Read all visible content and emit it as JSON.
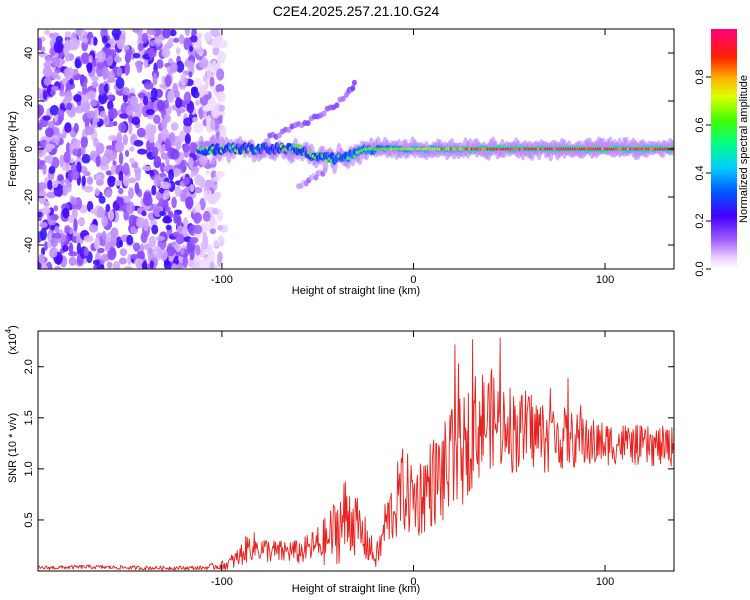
{
  "title": "C2E4.2025.257.21.10.G24",
  "chart_data": [
    {
      "type": "heatmap",
      "title": "C2E4.2025.257.21.10.G24",
      "xlabel": "Height of straight line (km)",
      "ylabel": "Frequency (Hz)",
      "xlim": [
        -196,
        136
      ],
      "ylim": [
        -50,
        50
      ],
      "xticks": [
        -100,
        0,
        100
      ],
      "yticks": [
        -40,
        -20,
        0,
        20,
        40
      ],
      "xtick_labels": [
        "-100",
        "0",
        "100"
      ],
      "ytick_labels": [
        "-40",
        "-20",
        "0",
        "20",
        "40"
      ],
      "colorbar": {
        "label": "Normalized spectral amplitude",
        "range": [
          0,
          1
        ],
        "ticks": [
          0.0,
          0.2,
          0.4,
          0.6,
          0.8
        ],
        "tick_labels": [
          "0.0",
          "0.2",
          "0.4",
          "0.6",
          "0.8"
        ]
      },
      "features": [
        {
          "name": "noise region",
          "x_range": [
            -196,
            -105
          ],
          "freq_range": [
            -50,
            50
          ],
          "amplitude": 0.15
        },
        {
          "name": "primary trace",
          "x_range": [
            -112,
            136
          ],
          "frequency": 0,
          "amplitude_range": [
            0.3,
            1.0
          ]
        },
        {
          "name": "upper branch",
          "x": [
            -75,
            -65,
            -55,
            -45,
            -35,
            -30
          ],
          "frequency": [
            5,
            8,
            11,
            16,
            22,
            28
          ],
          "amplitude": 0.2
        },
        {
          "name": "lower branch",
          "x": [
            -60,
            -52,
            -45
          ],
          "frequency": [
            -15,
            -12,
            -9
          ],
          "amplitude": 0.15
        }
      ]
    },
    {
      "type": "line",
      "xlabel": "Height of straight line (km)",
      "ylabel": "SNR (10 * v/v)",
      "scale_label": "(x10",
      "scale_exponent": "4",
      "xlim": [
        -196,
        136
      ],
      "ylim": [
        0,
        2.35
      ],
      "xticks": [
        -100,
        0,
        100
      ],
      "yticks": [
        0.5,
        1.0,
        1.5,
        2.0
      ],
      "xtick_labels": [
        "-100",
        "0",
        "100"
      ],
      "ytick_labels": [
        "0.5",
        "1.0",
        "1.5",
        "2.0"
      ],
      "series": [
        {
          "name": "SNR",
          "color": "#e8221e",
          "x": [
            -196,
            -170,
            -140,
            -110,
            -98,
            -92,
            -88,
            -85,
            -80,
            -75,
            -70,
            -65,
            -60,
            -55,
            -50,
            -45,
            -40,
            -36,
            -33,
            -30,
            -27,
            -24,
            -20,
            -17,
            -15,
            -12,
            -10,
            -7,
            -5,
            -3,
            0,
            3,
            5,
            10,
            15,
            20,
            25,
            30,
            35,
            40,
            45,
            50,
            55,
            60,
            65,
            70,
            80,
            90,
            100,
            110,
            120,
            130,
            136
          ],
          "values": [
            0.03,
            0.04,
            0.03,
            0.03,
            0.06,
            0.12,
            0.2,
            0.25,
            0.22,
            0.2,
            0.18,
            0.2,
            0.18,
            0.22,
            0.25,
            0.3,
            0.42,
            0.5,
            0.55,
            0.45,
            0.35,
            0.28,
            0.12,
            0.25,
            0.45,
            0.55,
            0.62,
            0.75,
            0.8,
            0.75,
            0.72,
            0.72,
            0.78,
            0.88,
            0.92,
            1.05,
            1.15,
            1.35,
            1.45,
            1.5,
            1.45,
            1.4,
            1.35,
            1.4,
            1.35,
            1.3,
            1.3,
            1.25,
            1.25,
            1.25,
            1.22,
            1.22,
            1.22
          ],
          "amplitude": [
            0.02,
            0.02,
            0.02,
            0.02,
            0.05,
            0.1,
            0.13,
            0.15,
            0.13,
            0.12,
            0.12,
            0.12,
            0.12,
            0.14,
            0.2,
            0.25,
            0.35,
            0.45,
            0.4,
            0.3,
            0.25,
            0.22,
            0.1,
            0.18,
            0.25,
            0.3,
            0.35,
            0.4,
            0.45,
            0.4,
            0.4,
            0.4,
            0.42,
            0.45,
            0.5,
            0.55,
            0.55,
            0.55,
            0.55,
            0.5,
            0.45,
            0.45,
            0.4,
            0.4,
            0.38,
            0.35,
            0.3,
            0.25,
            0.22,
            0.2,
            0.2,
            0.2,
            0.2
          ]
        }
      ]
    }
  ]
}
